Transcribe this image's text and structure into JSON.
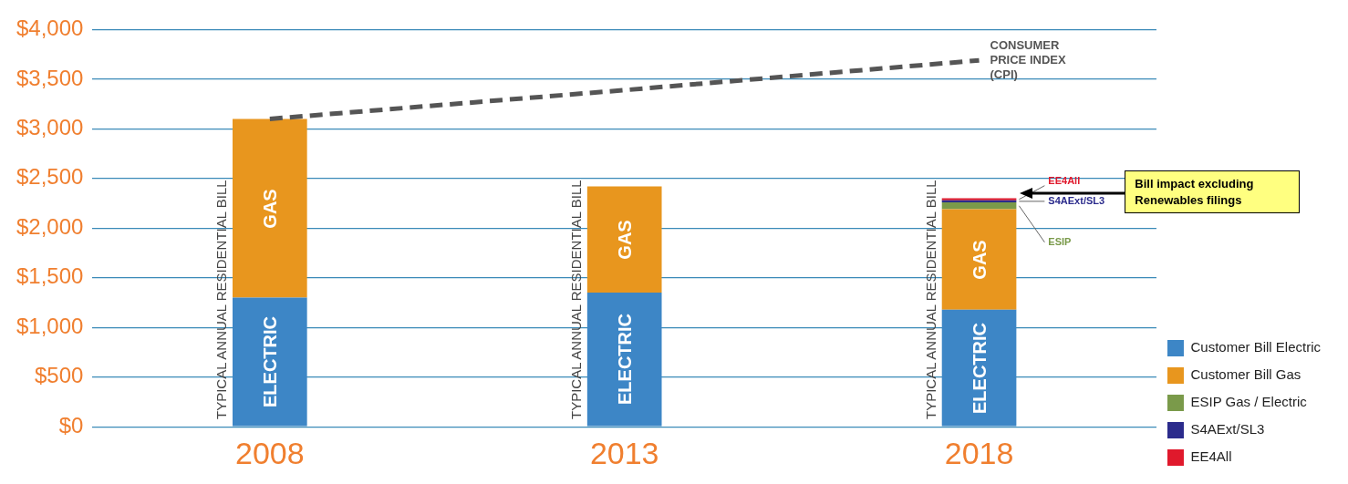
{
  "chart_data": {
    "type": "bar",
    "stacked": true,
    "categories": [
      "2008",
      "2013",
      "2018"
    ],
    "series": [
      {
        "name": "Customer Bill Electric",
        "color": "#3d86c6",
        "values": [
          1300,
          1350,
          1180
        ],
        "value_labels": [
          "ELECTRIC",
          "ELECTRIC",
          "ELECTRIC"
        ]
      },
      {
        "name": "Customer Bill Gas",
        "color": "#e8961e",
        "values": [
          1800,
          1070,
          1010
        ],
        "value_labels": [
          "GAS",
          "GAS",
          "GAS"
        ]
      },
      {
        "name": "ESIP Gas / Electric",
        "color": "#7a9a4a",
        "values": [
          null,
          null,
          70
        ],
        "value_labels": [
          null,
          null,
          "ESIP"
        ]
      },
      {
        "name": "S4AExt/SL3",
        "color": "#2b2b8c",
        "values": [
          null,
          null,
          20
        ],
        "value_labels": [
          null,
          null,
          "S4AExt/SL3"
        ]
      },
      {
        "name": "EE4All",
        "color": "#e0192c",
        "values": [
          null,
          null,
          20
        ],
        "value_labels": [
          null,
          null,
          "EE4All"
        ]
      },
      {
        "name": "CONSUMER PRICE INDEX (CPI)",
        "type": "line",
        "color": "#555555",
        "line_style": "dashed",
        "marker": "none",
        "values": [
          3100,
          3390,
          3690
        ]
      }
    ],
    "ylim": [
      0,
      4000
    ],
    "yticks": [
      {
        "value": 0,
        "label": "$0"
      },
      {
        "value": 500,
        "label": "$500"
      },
      {
        "value": 1000,
        "label": "$1,000"
      },
      {
        "value": 1500,
        "label": "$1,500"
      },
      {
        "value": 2000,
        "label": "$2,000"
      },
      {
        "value": 2500,
        "label": "$2,500"
      },
      {
        "value": 3000,
        "label": "$3,000"
      },
      {
        "value": 3500,
        "label": "$3,500"
      },
      {
        "value": 4000,
        "label": "$4,000"
      }
    ],
    "grid": "y",
    "legend": "right",
    "annotations": [
      "TYPICAL ANNUAL RESIDENTIAL BILL",
      "TYPICAL ANNUAL RESIDENTIAL BILL",
      "TYPICAL ANNUAL RESIDENTIAL BILL",
      "Bill impact excluding Renewables filings"
    ]
  }
}
